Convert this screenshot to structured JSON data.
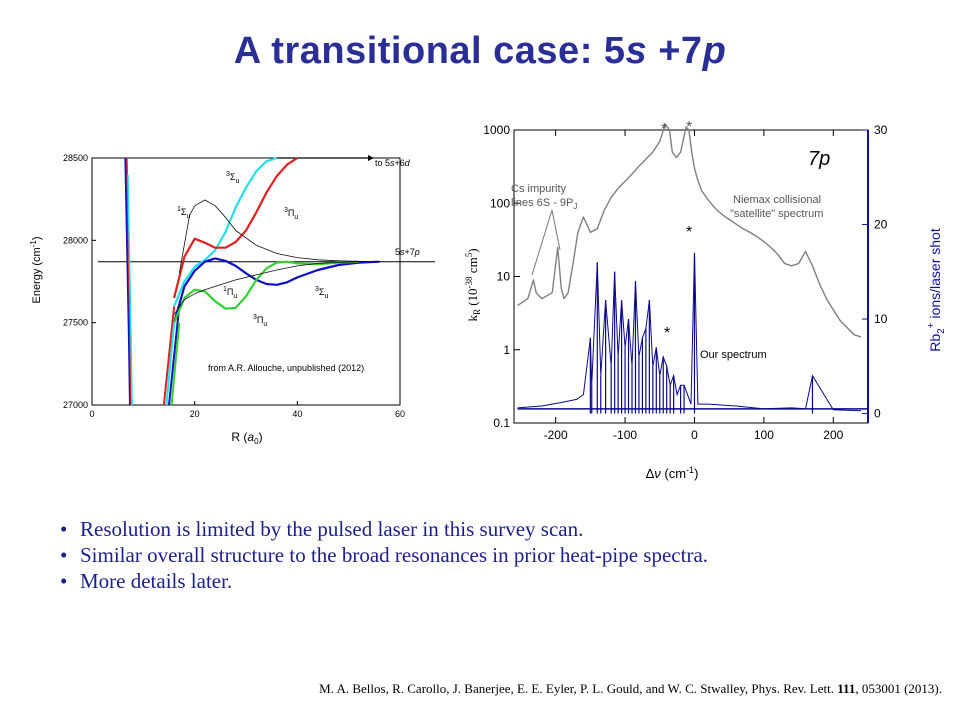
{
  "slide": {
    "title_prefix": "A transitional case: 5",
    "title_s": "s",
    "title_mid": " +7",
    "title_p": "p"
  },
  "bullets": [
    "Resolution is limited by the pulsed laser in this survey scan.",
    "Similar overall structure to the broad resonances in prior heat-pipe spectra.",
    "More details later."
  ],
  "citation": {
    "authors": "M. A. Bellos, R. Carollo, J. Banerjee, E. E. Eyler, P. L. Gould, and W. C. Stwalley, Phys. Rev. Lett. ",
    "volume": "111",
    "rest": ", 053001 (2013)."
  },
  "chart_data": [
    {
      "type": "line",
      "ylabel": "Energy (cm-1)",
      "xlabel": "R (a0)",
      "xlim": [
        0,
        60
      ],
      "ylim": [
        27000,
        28500
      ],
      "x_ticks": [
        "0",
        "20",
        "40",
        "60"
      ],
      "y_ticks": [
        "27000",
        "27500",
        "28000",
        "28500"
      ],
      "asymptotes": [
        {
          "label": "to 5s+6d",
          "y": 28500
        },
        {
          "label": "5s+7p",
          "y": 27870
        }
      ],
      "annotation": "from A.R. Allouche, unpublished (2012)",
      "curve_labels": [
        "3Σu",
        "1Σu",
        "3Πu",
        "1Πu",
        "3Σu",
        "3Πu"
      ],
      "series": [
        {
          "color": "#22e0e6",
          "x": [
            16,
            18,
            20,
            22,
            24,
            26,
            28,
            30,
            32,
            34,
            36
          ],
          "y": [
            27600,
            27750,
            27840,
            27880,
            27940,
            28050,
            28200,
            28320,
            28420,
            28480,
            28500
          ]
        },
        {
          "color": "#e02020",
          "x": [
            16,
            18,
            20,
            22,
            24,
            26,
            28,
            30,
            32,
            34,
            36,
            38,
            40
          ],
          "y": [
            27650,
            27900,
            28010,
            27985,
            27955,
            27955,
            27990,
            28060,
            28170,
            28290,
            28390,
            28460,
            28500
          ]
        },
        {
          "color": "#1010c8",
          "x": [
            16,
            18,
            20,
            22,
            24,
            26,
            28,
            30,
            32,
            34,
            36,
            38,
            40,
            44,
            48,
            52,
            56
          ],
          "y": [
            27500,
            27720,
            27815,
            27870,
            27890,
            27875,
            27845,
            27800,
            27760,
            27735,
            27730,
            27745,
            27775,
            27820,
            27850,
            27865,
            27870
          ]
        },
        {
          "color": "#30d030",
          "x": [
            16,
            18,
            20,
            22,
            24,
            26,
            28,
            30,
            32,
            34,
            36,
            38,
            40,
            44,
            48,
            52
          ],
          "y": [
            27500,
            27650,
            27700,
            27690,
            27630,
            27585,
            27590,
            27660,
            27760,
            27830,
            27865,
            27870,
            27860,
            27855,
            27865,
            27870
          ]
        },
        {
          "color": "#111111",
          "x": [
            17,
            19,
            20,
            22,
            24,
            26,
            28,
            32,
            36,
            40,
            44,
            48,
            52,
            56
          ],
          "y": [
            27800,
            28150,
            28210,
            28245,
            28210,
            28140,
            28060,
            27970,
            27920,
            27895,
            27882,
            27876,
            27872,
            27870
          ]
        },
        {
          "color": "#111111",
          "x": [
            16,
            18,
            20,
            22,
            24,
            26,
            28,
            32,
            36,
            40,
            44,
            48,
            52
          ],
          "y": [
            27550,
            27640,
            27675,
            27700,
            27720,
            27740,
            27760,
            27790,
            27820,
            27845,
            27860,
            27866,
            27870
          ]
        }
      ]
    },
    {
      "type": "line",
      "title": "7p",
      "xlabel": "Δν (cm-1)",
      "ylabel_left": "kR (10-38 cm5)",
      "ylabel_right": "Rb2+ ions/laser shot",
      "xlim": [
        -260,
        250
      ],
      "ylim_left": [
        0.1,
        1000
      ],
      "yscale_left": "log",
      "ylim_right": [
        -1,
        30
      ],
      "x_ticks": [
        "-200",
        "-100",
        "0",
        "100",
        "200"
      ],
      "y_ticks_left": [
        "0.1",
        "1",
        "10",
        "100",
        "1000"
      ],
      "y_ticks_right": [
        "0",
        "10",
        "20",
        "30"
      ],
      "annotations": [
        {
          "text": "Cs impurity"
        },
        {
          "text": "lines 6S - 9PJ"
        },
        {
          "text": "Niemax collisional"
        },
        {
          "text": "\"satellite\" spectrum"
        },
        {
          "text": "Our spectrum"
        }
      ],
      "stars": [
        "*",
        "*",
        "*",
        "*"
      ],
      "series": [
        {
          "name": "Niemax collisional \"satellite\" spectrum",
          "color": "#808080",
          "x": [
            -255,
            -240,
            -232,
            -228,
            -220,
            -205,
            -197,
            -192,
            -188,
            -182,
            -175,
            -168,
            -160,
            -150,
            -140,
            -130,
            -120,
            -110,
            -100,
            -90,
            -80,
            -70,
            -60,
            -50,
            -42,
            -36,
            -32,
            -26,
            -20,
            -12,
            -8,
            -4,
            0,
            4,
            10,
            20,
            30,
            40,
            50,
            60,
            70,
            80,
            90,
            100,
            110,
            120,
            130,
            140,
            150,
            160,
            170,
            180,
            190,
            200,
            210,
            220,
            230,
            240
          ],
          "y": [
            4,
            5,
            9,
            6,
            5,
            6,
            25,
            7,
            5,
            6,
            15,
            40,
            65,
            40,
            45,
            80,
            120,
            160,
            200,
            250,
            320,
            400,
            500,
            700,
            1200,
            1000,
            500,
            420,
            500,
            1100,
            1000,
            500,
            300,
            220,
            150,
            110,
            85,
            70,
            60,
            52,
            45,
            40,
            35,
            30,
            25,
            20,
            15,
            14,
            15,
            22,
            14,
            8,
            5,
            3.5,
            2.5,
            2,
            1.6,
            1.5
          ]
        },
        {
          "name": "Our spectrum",
          "color": "#0a0a8c",
          "x": [
            -255,
            -220,
            -190,
            -170,
            -160,
            -150,
            -148,
            -140,
            -135,
            -128,
            -120,
            -115,
            -110,
            -105,
            -100,
            -95,
            -90,
            -85,
            -80,
            -75,
            -70,
            -65,
            -60,
            -55,
            -50,
            -45,
            -40,
            -35,
            -30,
            -25,
            -20,
            -15,
            -10,
            -5,
            0,
            5,
            20,
            60,
            100,
            140,
            160,
            170,
            200,
            240
          ],
          "y": [
            0.6,
            0.8,
            1.2,
            1.5,
            2,
            8,
            3,
            16,
            4,
            12,
            5,
            15,
            6,
            12,
            7,
            10,
            5,
            14,
            6,
            8,
            9,
            12,
            5,
            7,
            4,
            6,
            5,
            3,
            4,
            2,
            3,
            3,
            2,
            1,
            17,
            1,
            1,
            0.8,
            0.5,
            0.6,
            0.5,
            4,
            0.4,
            0.3
          ]
        }
      ]
    }
  ]
}
